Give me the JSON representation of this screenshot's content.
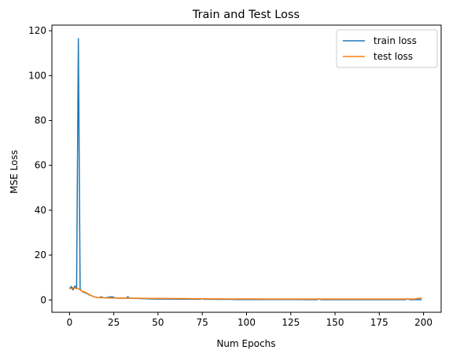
{
  "chart_data": {
    "type": "line",
    "title": "Train and Test Loss",
    "xlabel": "Num Epochs",
    "ylabel": "MSE Loss",
    "xlim": [
      -9.95,
      209.95
    ],
    "ylim": [
      -5.5,
      122.5
    ],
    "xticks": [
      0,
      25,
      50,
      75,
      100,
      125,
      150,
      175,
      200
    ],
    "yticks": [
      0,
      20,
      40,
      60,
      80,
      100,
      120
    ],
    "grid": false,
    "legend_position": "top-right",
    "series": [
      {
        "name": "train loss",
        "color": "#1f77b4",
        "x": [
          0,
          1,
          2,
          3,
          4,
          5,
          6,
          7,
          8,
          9,
          10,
          11,
          12,
          13,
          14,
          15,
          16,
          17,
          18,
          19,
          20,
          22,
          24,
          26,
          28,
          30,
          32,
          33,
          34,
          36,
          40,
          45,
          50,
          55,
          60,
          65,
          70,
          74,
          75,
          76,
          80,
          85,
          90,
          95,
          100,
          105,
          110,
          115,
          120,
          125,
          130,
          135,
          140,
          141,
          142,
          145,
          150,
          155,
          160,
          165,
          170,
          175,
          180,
          185,
          190,
          191,
          192,
          195,
          199
        ],
        "y": [
          5.0,
          6.0,
          4.5,
          6.2,
          5.0,
          116.5,
          4.8,
          3.8,
          3.5,
          3.2,
          2.8,
          2.3,
          2.0,
          1.7,
          1.4,
          1.2,
          1.0,
          1.1,
          1.4,
          1.0,
          0.9,
          1.2,
          1.4,
          0.9,
          0.8,
          0.8,
          0.8,
          1.4,
          0.7,
          0.7,
          0.6,
          0.5,
          0.4,
          0.4,
          0.35,
          0.35,
          0.3,
          0.3,
          0.6,
          0.3,
          0.3,
          0.25,
          0.25,
          0.2,
          0.2,
          0.2,
          0.2,
          0.2,
          0.2,
          0.2,
          0.2,
          0.15,
          0.15,
          0.5,
          0.15,
          0.15,
          0.15,
          0.15,
          0.15,
          0.15,
          0.15,
          0.15,
          0.15,
          0.15,
          0.15,
          0.5,
          0.15,
          0.15,
          0.15
        ]
      },
      {
        "name": "test loss",
        "color": "#ff7f0e",
        "x": [
          0,
          1,
          2,
          3,
          4,
          5,
          6,
          7,
          8,
          9,
          10,
          11,
          12,
          13,
          14,
          15,
          16,
          17,
          18,
          19,
          20,
          22,
          25,
          30,
          35,
          40,
          45,
          50,
          55,
          60,
          65,
          70,
          75,
          80,
          85,
          90,
          95,
          100,
          105,
          110,
          115,
          120,
          125,
          130,
          135,
          140,
          145,
          150,
          155,
          160,
          165,
          170,
          175,
          180,
          185,
          190,
          195,
          199
        ],
        "y": [
          5.2,
          5.0,
          5.5,
          5.2,
          5.3,
          5.0,
          4.5,
          3.9,
          3.7,
          3.4,
          3.0,
          2.5,
          2.1,
          1.7,
          1.4,
          1.2,
          1.1,
          1.0,
          1.0,
          1.0,
          0.95,
          0.9,
          0.85,
          0.8,
          0.8,
          0.75,
          0.7,
          0.65,
          0.65,
          0.6,
          0.6,
          0.55,
          0.55,
          0.5,
          0.5,
          0.45,
          0.45,
          0.45,
          0.45,
          0.4,
          0.4,
          0.4,
          0.4,
          0.4,
          0.4,
          0.4,
          0.4,
          0.4,
          0.4,
          0.4,
          0.4,
          0.4,
          0.4,
          0.4,
          0.4,
          0.4,
          0.45,
          0.9
        ]
      }
    ]
  }
}
